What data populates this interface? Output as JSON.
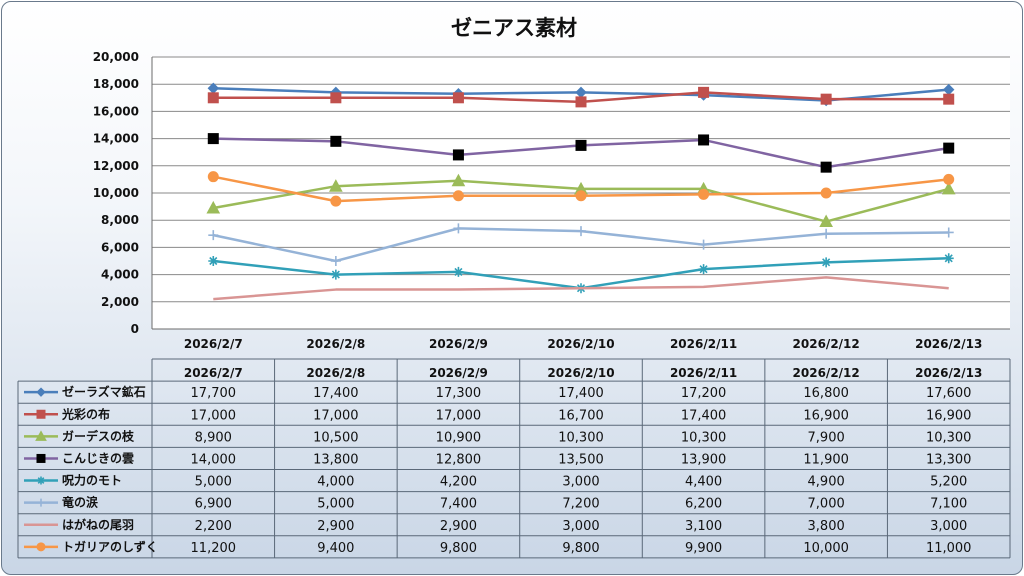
{
  "chart_data": {
    "type": "line",
    "title": "ゼニアス素材",
    "xlabel": "",
    "ylabel": "",
    "ylim": [
      0,
      20000
    ],
    "ytick_step": 2000,
    "y_ticks": [
      "0",
      "2,000",
      "4,000",
      "6,000",
      "8,000",
      "10,000",
      "12,000",
      "14,000",
      "16,000",
      "18,000",
      "20,000"
    ],
    "grid": true,
    "legend": "data-table-below",
    "categories": [
      "2026/2/7",
      "2026/2/8",
      "2026/2/9",
      "2026/2/10",
      "2026/2/11",
      "2026/2/12",
      "2026/2/13"
    ],
    "series": [
      {
        "name": "ゼーラズマ鉱石",
        "color": "#4a7ebb",
        "marker": "diamond",
        "values": [
          17700,
          17400,
          17300,
          17400,
          17200,
          16800,
          17600
        ],
        "labels": [
          "17,700",
          "17,400",
          "17,300",
          "17,400",
          "17,200",
          "16,800",
          "17,600"
        ]
      },
      {
        "name": "光彩の布",
        "color": "#c0504d",
        "marker": "square",
        "values": [
          17000,
          17000,
          17000,
          16700,
          17400,
          16900,
          16900
        ],
        "labels": [
          "17,000",
          "17,000",
          "17,000",
          "16,700",
          "17,400",
          "16,900",
          "16,900"
        ]
      },
      {
        "name": "ガーデスの枝",
        "color": "#9bbb59",
        "marker": "triangle",
        "values": [
          8900,
          10500,
          10900,
          10300,
          10300,
          7900,
          10300
        ],
        "labels": [
          "8,900",
          "10,500",
          "10,900",
          "10,300",
          "10,300",
          "7,900",
          "10,300"
        ]
      },
      {
        "name": "こんじきの雲",
        "color": "#8064a2",
        "marker": "square",
        "marker_color": "#000000",
        "values": [
          14000,
          13800,
          12800,
          13500,
          13900,
          11900,
          13300
        ],
        "labels": [
          "14,000",
          "13,800",
          "12,800",
          "13,500",
          "13,900",
          "11,900",
          "13,300"
        ]
      },
      {
        "name": "呪力のモト",
        "color": "#31a0b8",
        "marker": "star",
        "values": [
          5000,
          4000,
          4200,
          3000,
          4400,
          4900,
          5200
        ],
        "labels": [
          "5,000",
          "4,000",
          "4,200",
          "3,000",
          "4,400",
          "4,900",
          "5,200"
        ]
      },
      {
        "name": "竜の涙",
        "color": "#95b3d7",
        "marker": "plus",
        "values": [
          6900,
          5000,
          7400,
          7200,
          6200,
          7000,
          7100
        ],
        "labels": [
          "6,900",
          "5,000",
          "7,400",
          "7,200",
          "6,200",
          "7,000",
          "7,100"
        ]
      },
      {
        "name": "はがねの尾羽",
        "color": "#d99594",
        "marker": "none",
        "values": [
          2200,
          2900,
          2900,
          3000,
          3100,
          3800,
          3000
        ],
        "labels": [
          "2,200",
          "2,900",
          "2,900",
          "3,000",
          "3,100",
          "3,800",
          "3,000"
        ]
      },
      {
        "name": "トガリアのしずく",
        "color": "#f79646",
        "marker": "circle",
        "values": [
          11200,
          9400,
          9800,
          9800,
          9900,
          10000,
          11000
        ],
        "labels": [
          "11,200",
          "9,400",
          "9,800",
          "9,800",
          "9,900",
          "10,000",
          "11,000"
        ]
      }
    ]
  }
}
